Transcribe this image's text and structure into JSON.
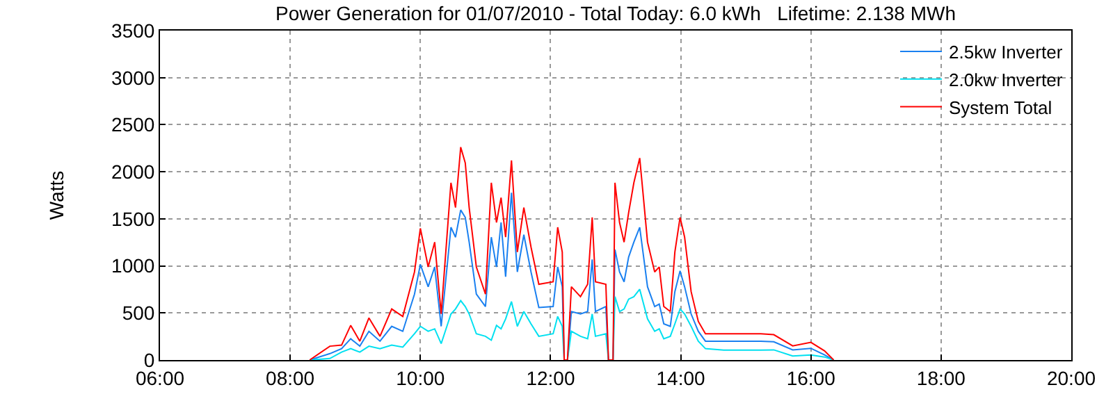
{
  "chart_data": {
    "type": "line",
    "title": "Power Generation for 01/07/2010 - Total Today: 6.0 kWh   Lifetime: 2.138 MWh",
    "ylabel": "Watts",
    "x": [
      8.3,
      8.61,
      8.79,
      8.93,
      9.07,
      9.21,
      9.38,
      9.56,
      9.73,
      9.91,
      10.0,
      10.12,
      10.22,
      10.32,
      10.47,
      10.54,
      10.62,
      10.69,
      10.75,
      10.86,
      11.0,
      11.09,
      11.17,
      11.24,
      11.31,
      11.4,
      11.49,
      11.59,
      11.7,
      11.82,
      12.04,
      12.11,
      12.18,
      12.21,
      12.26,
      12.32,
      12.46,
      12.57,
      12.64,
      12.69,
      12.85,
      12.89,
      12.96,
      12.99,
      13.06,
      13.13,
      13.2,
      13.28,
      13.37,
      13.42,
      13.49,
      13.6,
      13.67,
      13.74,
      13.84,
      13.91,
      13.99,
      14.06,
      14.16,
      14.27,
      14.38,
      14.66,
      15.23,
      15.43,
      15.72,
      16.0,
      16.21,
      16.35
    ],
    "series": [
      {
        "name": "2.5kw Inverter",
        "color": "#1a80f0",
        "values": [
          0,
          68,
          121,
          226,
          147,
          305,
          200,
          358,
          305,
          700,
          1015,
          778,
          989,
          358,
          1410,
          1305,
          1594,
          1515,
          1252,
          700,
          568,
          1305,
          989,
          1462,
          884,
          1778,
          936,
          1331,
          936,
          557,
          568,
          989,
          778,
          0,
          0,
          515,
          489,
          515,
          1068,
          515,
          568,
          0,
          0,
          1173,
          936,
          831,
          1094,
          1252,
          1410,
          1147,
          778,
          568,
          594,
          384,
          358,
          726,
          947,
          778,
          489,
          305,
          200,
          200,
          200,
          194,
          108,
          124,
          54,
          0
        ]
      },
      {
        "name": "2.0kw Inverter",
        "color": "#00e0f0",
        "values": [
          0,
          16,
          84,
          121,
          84,
          147,
          121,
          158,
          137,
          279,
          358,
          305,
          331,
          174,
          489,
          542,
          631,
          568,
          489,
          279,
          252,
          210,
          368,
          331,
          437,
          621,
          358,
          515,
          384,
          252,
          279,
          463,
          358,
          0,
          0,
          305,
          252,
          226,
          489,
          252,
          279,
          0,
          0,
          673,
          515,
          542,
          647,
          673,
          752,
          621,
          437,
          305,
          331,
          226,
          252,
          384,
          542,
          489,
          358,
          200,
          121,
          105,
          105,
          108,
          43,
          54,
          32,
          0
        ]
      },
      {
        "name": "System Total",
        "color": "#ff0000",
        "values": [
          0,
          147,
          158,
          368,
          200,
          447,
          252,
          542,
          463,
          936,
          1399,
          989,
          1252,
          489,
          1883,
          1620,
          2262,
          2094,
          1620,
          989,
          700,
          1883,
          1462,
          1725,
          1305,
          2120,
          1147,
          1620,
          1200,
          805,
          831,
          1410,
          1147,
          0,
          0,
          778,
          673,
          805,
          1515,
          831,
          805,
          0,
          0,
          1883,
          1462,
          1252,
          1567,
          1883,
          2146,
          1778,
          1252,
          936,
          989,
          568,
          515,
          1147,
          1515,
          1305,
          726,
          410,
          279,
          279,
          279,
          269,
          150,
          188,
          97,
          0
        ]
      }
    ],
    "xlim": [
      6,
      20
    ],
    "xticks": [
      {
        "value": 6,
        "label": "06:00"
      },
      {
        "value": 8,
        "label": "08:00"
      },
      {
        "value": 10,
        "label": "10:00"
      },
      {
        "value": 12,
        "label": "12:00"
      },
      {
        "value": 14,
        "label": "14:00"
      },
      {
        "value": 16,
        "label": "16:00"
      },
      {
        "value": 18,
        "label": "18:00"
      },
      {
        "value": 20,
        "label": "20:00"
      }
    ],
    "ylim": [
      0,
      3500
    ],
    "yticks": [
      0,
      500,
      1000,
      1500,
      2000,
      2500,
      3000,
      3500
    ],
    "grid": true,
    "legend": "top right",
    "marker": "none",
    "line_style": "solid"
  }
}
